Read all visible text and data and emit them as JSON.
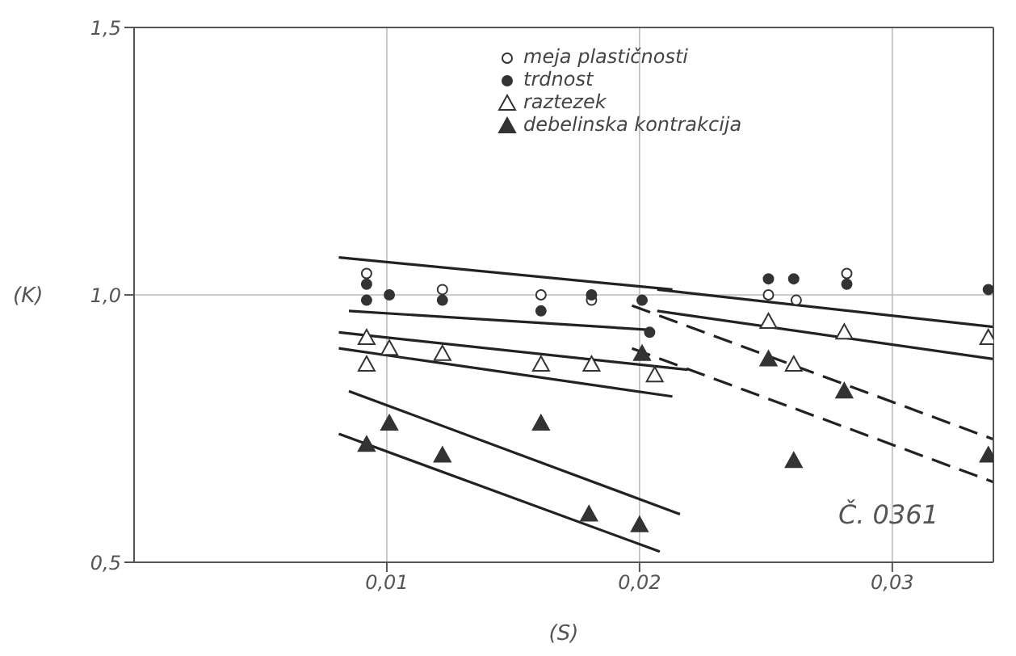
{
  "chart_data": {
    "type": "scatter",
    "xlabel": "(S)",
    "ylabel": "(K)",
    "xlim": [
      0,
      0.034
    ],
    "ylim": [
      0.5,
      1.5
    ],
    "xticks": [
      {
        "value": 0.01,
        "label": "0,01"
      },
      {
        "value": 0.02,
        "label": "0,02"
      },
      {
        "value": 0.03,
        "label": "0,03"
      }
    ],
    "yticks": [
      {
        "value": 0.5,
        "label": "0,5"
      },
      {
        "value": 1.0,
        "label": "1,0"
      },
      {
        "value": 1.5,
        "label": "1,5"
      }
    ],
    "grid": true,
    "legend": "top",
    "annotations": [
      "Č. 0361"
    ],
    "series": [
      {
        "name": "meja plastičnosti",
        "marker": "circle",
        "color": "#ffffff",
        "x": [
          0.0092,
          0.0122,
          0.0161,
          0.0181,
          0.0201,
          0.0251,
          0.0262,
          0.0282
        ],
        "values": [
          1.04,
          1.01,
          1.0,
          0.99,
          null,
          1.0,
          0.99,
          1.04
        ]
      },
      {
        "name": "trdnost",
        "marker": "circle",
        "color": "#333333",
        "x": [
          0.0092,
          0.0092,
          0.0101,
          0.0122,
          0.0161,
          0.0181,
          0.0201,
          0.0204,
          0.0251,
          0.0261,
          0.0282,
          0.0338
        ],
        "values": [
          1.02,
          0.99,
          1.0,
          0.99,
          0.97,
          1.0,
          0.99,
          0.93,
          1.03,
          1.03,
          1.02,
          1.01
        ]
      },
      {
        "name": "raztezek",
        "marker": "triangle",
        "color": "#ffffff",
        "x": [
          0.0092,
          0.0092,
          0.0101,
          0.0122,
          0.0161,
          0.0181,
          0.0206,
          0.0251,
          0.0261,
          0.0281,
          0.0338
        ],
        "values": [
          0.92,
          0.87,
          0.9,
          0.89,
          0.87,
          0.87,
          0.85,
          0.95,
          0.87,
          0.93,
          0.92
        ]
      },
      {
        "name": "debelinska kontrakcija",
        "marker": "triangle",
        "color": "#333333",
        "x": [
          0.0092,
          0.0101,
          0.0122,
          0.0161,
          0.018,
          0.02,
          0.0201,
          0.0251,
          0.0261,
          0.0281,
          0.0338
        ],
        "values": [
          0.72,
          0.76,
          0.7,
          0.76,
          0.59,
          0.57,
          0.89,
          0.88,
          0.69,
          0.82,
          0.7
        ]
      },
      {
        "type": "line",
        "color": "#222222",
        "line_style": "solid",
        "x": [
          0.0081,
          0.0213
        ],
        "values": [
          1.07,
          1.01
        ]
      },
      {
        "type": "line",
        "color": "#222222",
        "line_style": "solid",
        "x": [
          0.0085,
          0.0203
        ],
        "values": [
          0.97,
          0.935
        ]
      },
      {
        "type": "line",
        "color": "#222222",
        "line_style": "solid",
        "x": [
          0.0081,
          0.0219
        ],
        "values": [
          0.93,
          0.86
        ]
      },
      {
        "type": "line",
        "color": "#222222",
        "line_style": "solid",
        "x": [
          0.0081,
          0.0213
        ],
        "values": [
          0.9,
          0.81
        ]
      },
      {
        "type": "line",
        "color": "#222222",
        "line_style": "solid",
        "x": [
          0.0085,
          0.0216
        ],
        "values": [
          0.82,
          0.59
        ]
      },
      {
        "type": "line",
        "color": "#222222",
        "line_style": "solid",
        "x": [
          0.0081,
          0.0208
        ],
        "values": [
          0.74,
          0.52
        ]
      },
      {
        "type": "line",
        "color": "#222222",
        "line_style": "solid",
        "x": [
          0.0207,
          0.034
        ],
        "values": [
          1.01,
          0.94
        ]
      },
      {
        "type": "line",
        "color": "#222222",
        "line_style": "solid",
        "x": [
          0.0207,
          0.034
        ],
        "values": [
          0.97,
          0.88
        ]
      },
      {
        "type": "line",
        "color": "#222222",
        "line_style": "dashed",
        "x": [
          0.0197,
          0.034
        ],
        "values": [
          0.98,
          0.73
        ]
      },
      {
        "type": "line",
        "color": "#222222",
        "line_style": "dashed",
        "x": [
          0.0197,
          0.034
        ],
        "values": [
          0.9,
          0.65
        ]
      }
    ]
  }
}
